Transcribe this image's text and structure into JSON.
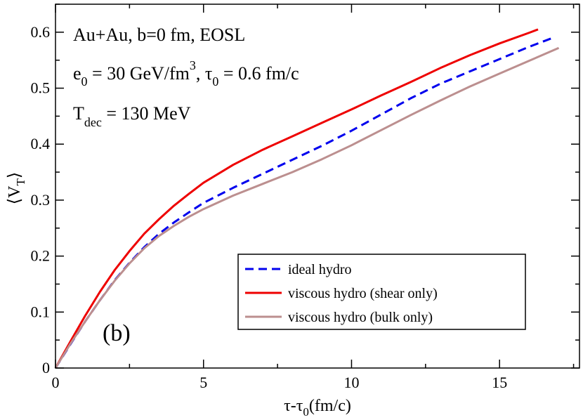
{
  "chart_data": {
    "type": "line",
    "xlabel": {
      "main": "τ-τ",
      "sub": "0",
      "rest": "(fm/c)"
    },
    "ylabel": {
      "main": "⟨V",
      "sub": "T",
      "rest": "⟩"
    },
    "xlim": [
      0,
      17.7
    ],
    "ylim": [
      0,
      0.65
    ],
    "xticks": [
      0,
      5,
      10,
      15
    ],
    "xtick_labels": [
      "0",
      "5",
      "10",
      "15"
    ],
    "yticks": [
      0,
      0.1,
      0.2,
      0.3,
      0.4,
      0.5,
      0.6
    ],
    "ytick_labels": [
      "0",
      "0.1",
      "0.2",
      "0.3",
      "0.4",
      "0.5",
      "0.6"
    ],
    "annotations": {
      "line1": "Au+Au, b=0 fm, EOSL",
      "line2_a": "e",
      "line2_sub": "0",
      "line2_b": " = 30 GeV/fm",
      "line2_sup": "3",
      "line2_c": ",  τ",
      "line2_sub2": "0",
      "line2_d": " = 0.6 fm/c",
      "line3_a": "T",
      "line3_sub": "dec",
      "line3_b": " = 130 MeV",
      "panel_label": "(b)"
    },
    "legend_position": "bottom-right",
    "series": [
      {
        "name": "ideal hydro",
        "color": "#0000ee",
        "dash": true,
        "x": [
          0,
          0.5,
          1,
          1.5,
          2,
          2.5,
          3,
          3.5,
          4,
          4.5,
          5,
          6,
          7,
          8,
          9,
          10,
          11,
          12,
          13,
          14,
          15,
          16,
          16.8
        ],
        "y": [
          0,
          0.042,
          0.083,
          0.121,
          0.157,
          0.188,
          0.216,
          0.24,
          0.26,
          0.278,
          0.295,
          0.322,
          0.347,
          0.372,
          0.397,
          0.424,
          0.453,
          0.482,
          0.508,
          0.53,
          0.552,
          0.574,
          0.59
        ]
      },
      {
        "name": "viscous hydro (shear only)",
        "color": "#ee0000",
        "dash": false,
        "x": [
          0,
          0.5,
          1,
          1.5,
          2,
          2.5,
          3,
          3.5,
          4,
          4.5,
          5,
          6,
          7,
          8,
          9,
          10,
          11,
          12,
          13,
          14,
          15,
          16,
          16.3
        ],
        "y": [
          0,
          0.047,
          0.093,
          0.136,
          0.175,
          0.209,
          0.24,
          0.266,
          0.29,
          0.311,
          0.331,
          0.363,
          0.39,
          0.414,
          0.438,
          0.462,
          0.487,
          0.511,
          0.536,
          0.559,
          0.58,
          0.599,
          0.605
        ]
      },
      {
        "name": "viscous hydro (bulk only)",
        "color": "#bc8f8f",
        "dash": false,
        "x": [
          0,
          0.5,
          1,
          1.5,
          2,
          2.5,
          3,
          3.5,
          4,
          4.5,
          5,
          6,
          7,
          8,
          9,
          10,
          11,
          12,
          13,
          14,
          15,
          16,
          17
        ],
        "y": [
          0,
          0.043,
          0.083,
          0.121,
          0.156,
          0.187,
          0.214,
          0.236,
          0.254,
          0.27,
          0.284,
          0.308,
          0.329,
          0.35,
          0.373,
          0.398,
          0.425,
          0.452,
          0.478,
          0.503,
          0.526,
          0.549,
          0.572
        ]
      }
    ]
  }
}
